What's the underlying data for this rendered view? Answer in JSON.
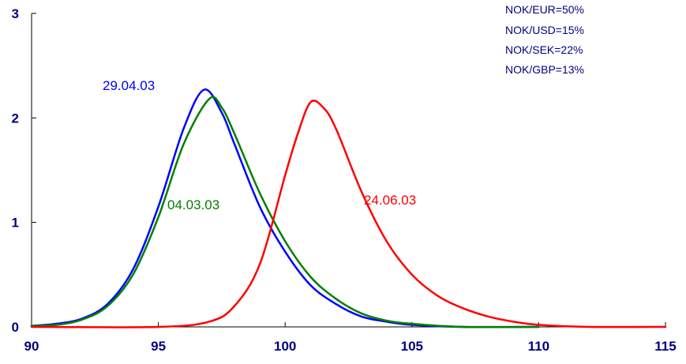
{
  "chart_data": {
    "type": "line",
    "title": "",
    "xlabel": "",
    "ylabel": "",
    "xlim": [
      90,
      115
    ],
    "ylim": [
      0,
      3
    ],
    "x_ticks": [
      "90",
      "95",
      "100",
      "105",
      "110",
      "115"
    ],
    "y_ticks": [
      "0",
      "1",
      "2",
      "3"
    ],
    "grid": false,
    "legend": "none",
    "annotations": [
      "NOK/EUR=50%",
      "NOK/USD=15%",
      "NOK/SEK=22%",
      "NOK/GBP=13%"
    ],
    "series": [
      {
        "label": "29.04.03",
        "color": "#0000ff",
        "x": [
          90,
          91,
          92,
          93,
          94,
          95,
          96,
          96.8,
          97.5,
          98,
          99,
          100,
          101,
          102,
          103,
          104,
          105,
          107,
          110
        ],
        "y": [
          0.01,
          0.03,
          0.08,
          0.22,
          0.55,
          1.15,
          1.9,
          2.27,
          2.05,
          1.75,
          1.15,
          0.72,
          0.4,
          0.22,
          0.1,
          0.05,
          0.02,
          0.0,
          0.0
        ]
      },
      {
        "label": "04.03.03",
        "color": "#008000",
        "x": [
          90,
          91,
          92,
          93,
          94,
          95,
          96,
          97,
          97.5,
          98,
          99,
          100,
          101,
          102,
          103,
          104,
          105,
          107,
          110
        ],
        "y": [
          0.01,
          0.02,
          0.07,
          0.2,
          0.5,
          1.05,
          1.75,
          2.18,
          2.1,
          1.85,
          1.28,
          0.82,
          0.48,
          0.27,
          0.13,
          0.06,
          0.03,
          0.0,
          0.0
        ]
      },
      {
        "label": "24.06.03",
        "color": "#ff0000",
        "x": [
          90,
          95,
          97,
          98,
          99,
          100,
          100.5,
          101,
          101.5,
          102,
          103,
          104,
          105,
          106,
          107,
          108,
          109,
          110,
          112,
          115
        ],
        "y": [
          0.0,
          0.0,
          0.05,
          0.2,
          0.6,
          1.45,
          1.85,
          2.15,
          2.1,
          1.9,
          1.3,
          0.82,
          0.5,
          0.3,
          0.18,
          0.1,
          0.05,
          0.02,
          0.0,
          0.0
        ]
      }
    ]
  }
}
